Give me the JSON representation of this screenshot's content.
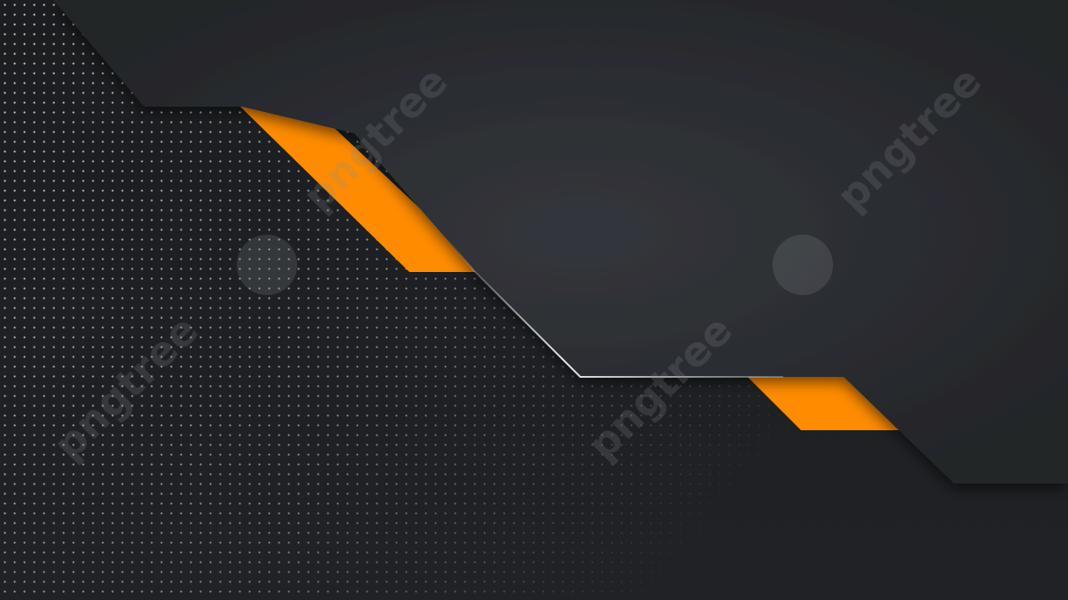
{
  "colors": {
    "background": "#1e2024",
    "dots": "#d8d8d8",
    "panel": "#27292d",
    "panel_highlight": "#33363b",
    "accent": "#ff8c00",
    "edge_highlight": "#e6ecf2",
    "watermark": "#8a8d92"
  },
  "watermark": {
    "text": "pngtree",
    "logo": "pngtree-leaf-logo"
  }
}
